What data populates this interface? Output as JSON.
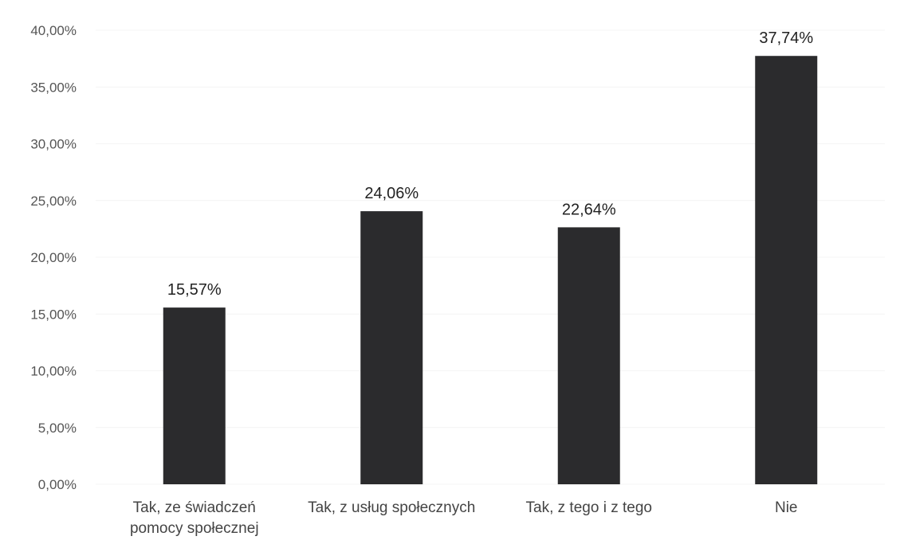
{
  "chart_data": {
    "type": "bar",
    "categories": [
      [
        "Tak, ze świadczeń",
        "pomocy społecznej"
      ],
      [
        "Tak, z usług społecznych"
      ],
      [
        "Tak, z tego i z tego"
      ],
      [
        "Nie"
      ]
    ],
    "values": [
      15.57,
      24.06,
      22.64,
      37.74
    ],
    "data_labels": [
      "15,57%",
      "24,06%",
      "22,64%",
      "37,74%"
    ],
    "y_ticks": [
      {
        "value": 0,
        "label": "0,00%"
      },
      {
        "value": 5,
        "label": "5,00%"
      },
      {
        "value": 10,
        "label": "10,00%"
      },
      {
        "value": 15,
        "label": "15,00%"
      },
      {
        "value": 20,
        "label": "20,00%"
      },
      {
        "value": 25,
        "label": "25,00%"
      },
      {
        "value": 30,
        "label": "30,00%"
      },
      {
        "value": 35,
        "label": "35,00%"
      },
      {
        "value": 40,
        "label": "40,00%"
      }
    ],
    "ylim": [
      0,
      40
    ],
    "grid": true,
    "legend": "none",
    "title": "",
    "xlabel": "",
    "ylabel": "",
    "bar_color": "#2b2b2d"
  }
}
